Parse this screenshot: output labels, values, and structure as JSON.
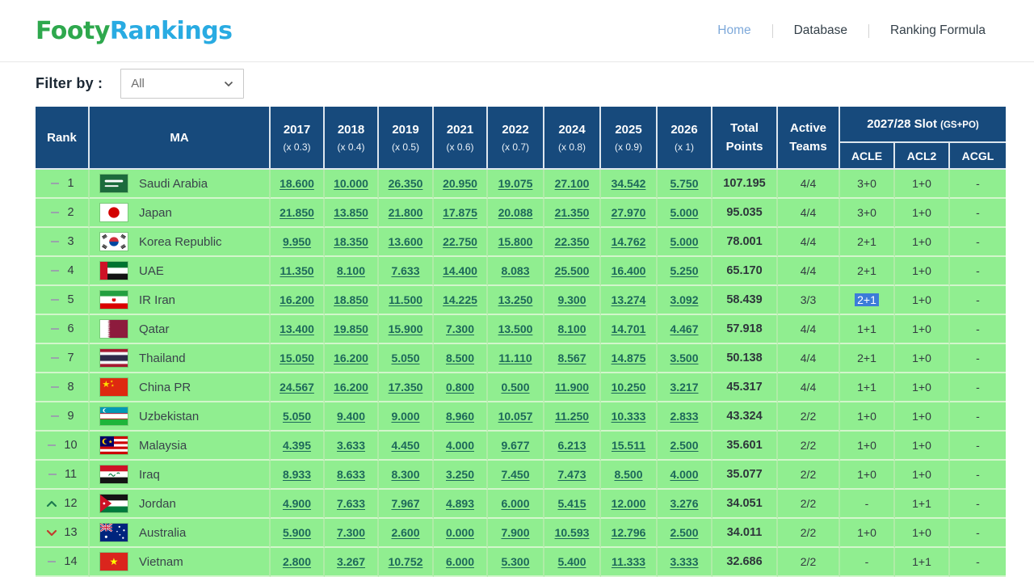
{
  "brand": {
    "part1": "Footy",
    "part2": "Rankings"
  },
  "nav": {
    "items": [
      {
        "label": "Home",
        "active": true
      },
      {
        "label": "Database",
        "active": false
      },
      {
        "label": "Ranking Formula",
        "active": false
      }
    ]
  },
  "filter": {
    "label": "Filter by :",
    "selected_option": "All"
  },
  "colors": {
    "header_navy": "#174A7C",
    "row_green": "#90EE90",
    "link_green": "#1D685A",
    "brand_green": "#2EA84D",
    "brand_blue": "#29ABE2",
    "active_nav_blue": "#7EA9DA",
    "selection_blue": "#3C7BD9",
    "rank_up_green": "#1D7A4F",
    "rank_down_red": "#C23B2D"
  },
  "table": {
    "columns": {
      "rank": "Rank",
      "ma": "MA",
      "years": [
        {
          "year": "2017",
          "multiplier": "(x 0.3)"
        },
        {
          "year": "2018",
          "multiplier": "(x 0.4)"
        },
        {
          "year": "2019",
          "multiplier": "(x 0.5)"
        },
        {
          "year": "2021",
          "multiplier": "(x 0.6)"
        },
        {
          "year": "2022",
          "multiplier": "(x 0.7)"
        },
        {
          "year": "2024",
          "multiplier": "(x 0.8)"
        },
        {
          "year": "2025",
          "multiplier": "(x 0.9)"
        },
        {
          "year": "2026",
          "multiplier": "(x 1)"
        }
      ],
      "total": "Total Points",
      "active": "Active Teams",
      "slot_group": "2027/28 Slot",
      "slot_note": "(GS+PO)",
      "slot_cols": [
        "ACLE",
        "ACL2",
        "ACGL"
      ]
    },
    "rows": [
      {
        "change": "same",
        "rank": "1",
        "flag": "sa",
        "country": "Saudi Arabia",
        "scores": [
          "18.600",
          "10.000",
          "26.350",
          "20.950",
          "19.075",
          "27.100",
          "34.542",
          "5.750"
        ],
        "total": "107.195",
        "active_teams": "4/4",
        "acle": "3+0",
        "acl2": "1+0",
        "acgl": "-",
        "acle_selected": false
      },
      {
        "change": "same",
        "rank": "2",
        "flag": "jp",
        "country": "Japan",
        "scores": [
          "21.850",
          "13.850",
          "21.800",
          "17.875",
          "20.088",
          "21.350",
          "27.970",
          "5.000"
        ],
        "total": "95.035",
        "active_teams": "4/4",
        "acle": "3+0",
        "acl2": "1+0",
        "acgl": "-",
        "acle_selected": false
      },
      {
        "change": "same",
        "rank": "3",
        "flag": "kr",
        "country": "Korea Republic",
        "scores": [
          "9.950",
          "18.350",
          "13.600",
          "22.750",
          "15.800",
          "22.350",
          "14.762",
          "5.000"
        ],
        "total": "78.001",
        "active_teams": "4/4",
        "acle": "2+1",
        "acl2": "1+0",
        "acgl": "-",
        "acle_selected": false
      },
      {
        "change": "same",
        "rank": "4",
        "flag": "ae",
        "country": "UAE",
        "scores": [
          "11.350",
          "8.100",
          "7.633",
          "14.400",
          "8.083",
          "25.500",
          "16.400",
          "5.250"
        ],
        "total": "65.170",
        "active_teams": "4/4",
        "acle": "2+1",
        "acl2": "1+0",
        "acgl": "-",
        "acle_selected": false
      },
      {
        "change": "same",
        "rank": "5",
        "flag": "ir",
        "country": "IR Iran",
        "scores": [
          "16.200",
          "18.850",
          "11.500",
          "14.225",
          "13.250",
          "9.300",
          "13.274",
          "3.092"
        ],
        "total": "58.439",
        "active_teams": "3/3",
        "acle": "2+1",
        "acl2": "1+0",
        "acgl": "-",
        "acle_selected": true
      },
      {
        "change": "same",
        "rank": "6",
        "flag": "qa",
        "country": "Qatar",
        "scores": [
          "13.400",
          "19.850",
          "15.900",
          "7.300",
          "13.500",
          "8.100",
          "14.701",
          "4.467"
        ],
        "total": "57.918",
        "active_teams": "4/4",
        "acle": "1+1",
        "acl2": "1+0",
        "acgl": "-",
        "acle_selected": false
      },
      {
        "change": "same",
        "rank": "7",
        "flag": "th",
        "country": "Thailand",
        "scores": [
          "15.050",
          "16.200",
          "5.050",
          "8.500",
          "11.110",
          "8.567",
          "14.875",
          "3.500"
        ],
        "total": "50.138",
        "active_teams": "4/4",
        "acle": "2+1",
        "acl2": "1+0",
        "acgl": "-",
        "acle_selected": false
      },
      {
        "change": "same",
        "rank": "8",
        "flag": "cn",
        "country": "China PR",
        "scores": [
          "24.567",
          "16.200",
          "17.350",
          "0.800",
          "0.500",
          "11.900",
          "10.250",
          "3.217"
        ],
        "total": "45.317",
        "active_teams": "4/4",
        "acle": "1+1",
        "acl2": "1+0",
        "acgl": "-",
        "acle_selected": false
      },
      {
        "change": "same",
        "rank": "9",
        "flag": "uz",
        "country": "Uzbekistan",
        "scores": [
          "5.050",
          "9.400",
          "9.000",
          "8.960",
          "10.057",
          "11.250",
          "10.333",
          "2.833"
        ],
        "total": "43.324",
        "active_teams": "2/2",
        "acle": "1+0",
        "acl2": "1+0",
        "acgl": "-",
        "acle_selected": false
      },
      {
        "change": "same",
        "rank": "10",
        "flag": "my",
        "country": "Malaysia",
        "scores": [
          "4.395",
          "3.633",
          "4.450",
          "4.000",
          "9.677",
          "6.213",
          "15.511",
          "2.500"
        ],
        "total": "35.601",
        "active_teams": "2/2",
        "acle": "1+0",
        "acl2": "1+0",
        "acgl": "-",
        "acle_selected": false
      },
      {
        "change": "same",
        "rank": "11",
        "flag": "iq",
        "country": "Iraq",
        "scores": [
          "8.933",
          "8.633",
          "8.300",
          "3.250",
          "7.450",
          "7.473",
          "8.500",
          "4.000"
        ],
        "total": "35.077",
        "active_teams": "2/2",
        "acle": "1+0",
        "acl2": "1+0",
        "acgl": "-",
        "acle_selected": false
      },
      {
        "change": "up",
        "rank": "12",
        "flag": "jo",
        "country": "Jordan",
        "scores": [
          "4.900",
          "7.633",
          "7.967",
          "4.893",
          "6.000",
          "5.415",
          "12.000",
          "3.276"
        ],
        "total": "34.051",
        "active_teams": "2/2",
        "acle": "-",
        "acl2": "1+1",
        "acgl": "-",
        "acle_selected": false
      },
      {
        "change": "down",
        "rank": "13",
        "flag": "au",
        "country": "Australia",
        "scores": [
          "5.900",
          "7.300",
          "2.600",
          "0.000",
          "7.900",
          "10.593",
          "12.796",
          "2.500"
        ],
        "total": "34.011",
        "active_teams": "2/2",
        "acle": "1+0",
        "acl2": "1+0",
        "acgl": "-",
        "acle_selected": false
      },
      {
        "change": "same",
        "rank": "14",
        "flag": "vn",
        "country": "Vietnam",
        "scores": [
          "2.800",
          "3.267",
          "10.752",
          "6.000",
          "5.300",
          "5.400",
          "11.333",
          "3.333"
        ],
        "total": "32.686",
        "active_teams": "2/2",
        "acle": "-",
        "acl2": "1+1",
        "acgl": "-",
        "acle_selected": false
      }
    ]
  }
}
